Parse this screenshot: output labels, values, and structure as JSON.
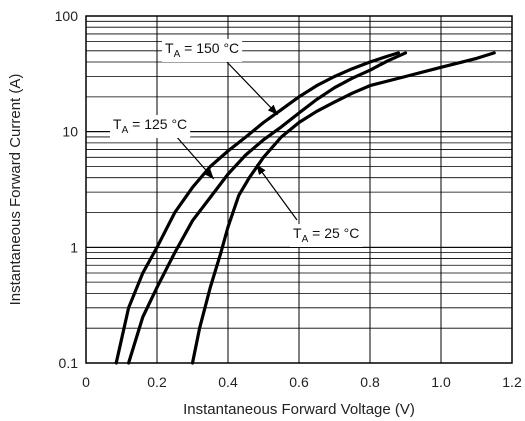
{
  "chart_data": {
    "type": "line",
    "xlabel": "Instantaneous Forward Voltage (V)",
    "ylabel": "Instantaneous Forward Current (A)",
    "xlim": [
      0,
      1.2
    ],
    "ylim": [
      0.1,
      100
    ],
    "yscale": "log",
    "grid": "on",
    "x_ticks": [
      "0",
      "0.2",
      "0.4",
      "0.6",
      "0.8",
      "1.0",
      "1.2"
    ],
    "y_ticks": [
      "0.1",
      "1",
      "10",
      "100"
    ],
    "series": [
      {
        "name": "T_A = 150 °C",
        "x": [
          0.085,
          0.12,
          0.16,
          0.2,
          0.25,
          0.3,
          0.35,
          0.4,
          0.45,
          0.5,
          0.55,
          0.6,
          0.65,
          0.7,
          0.75,
          0.8,
          0.85,
          0.88
        ],
        "y": [
          0.1,
          0.3,
          0.6,
          1.0,
          2.0,
          3.3,
          5.0,
          6.8,
          9.0,
          12.0,
          15.5,
          20,
          25,
          30,
          35,
          40,
          45,
          48
        ]
      },
      {
        "name": "T_A = 125 °C",
        "x": [
          0.12,
          0.16,
          0.2,
          0.25,
          0.3,
          0.35,
          0.4,
          0.45,
          0.5,
          0.55,
          0.6,
          0.65,
          0.7,
          0.75,
          0.8,
          0.85,
          0.9
        ],
        "y": [
          0.1,
          0.25,
          0.45,
          0.9,
          1.7,
          2.7,
          4.3,
          6.3,
          8.5,
          11.0,
          14.5,
          19,
          24,
          29,
          34,
          41,
          48
        ]
      },
      {
        "name": "T_A = 25 °C",
        "x": [
          0.3,
          0.32,
          0.35,
          0.38,
          0.4,
          0.43,
          0.46,
          0.5,
          0.55,
          0.6,
          0.65,
          0.7,
          0.75,
          0.8,
          0.9,
          1.0,
          1.1,
          1.15
        ],
        "y": [
          0.1,
          0.2,
          0.45,
          0.9,
          1.5,
          2.8,
          4.0,
          6.0,
          9.0,
          12.0,
          15.0,
          18.0,
          21.5,
          25.0,
          30.0,
          36.0,
          43.0,
          48.0
        ]
      }
    ],
    "annotations": [
      {
        "main": "T",
        "sub": "A",
        "rest": " = 150 °C",
        "series": 0
      },
      {
        "main": "T",
        "sub": "A",
        "rest": " = 125 °C",
        "series": 1
      },
      {
        "main": "T",
        "sub": "A",
        "rest": " = 25 °C",
        "series": 2
      }
    ]
  }
}
